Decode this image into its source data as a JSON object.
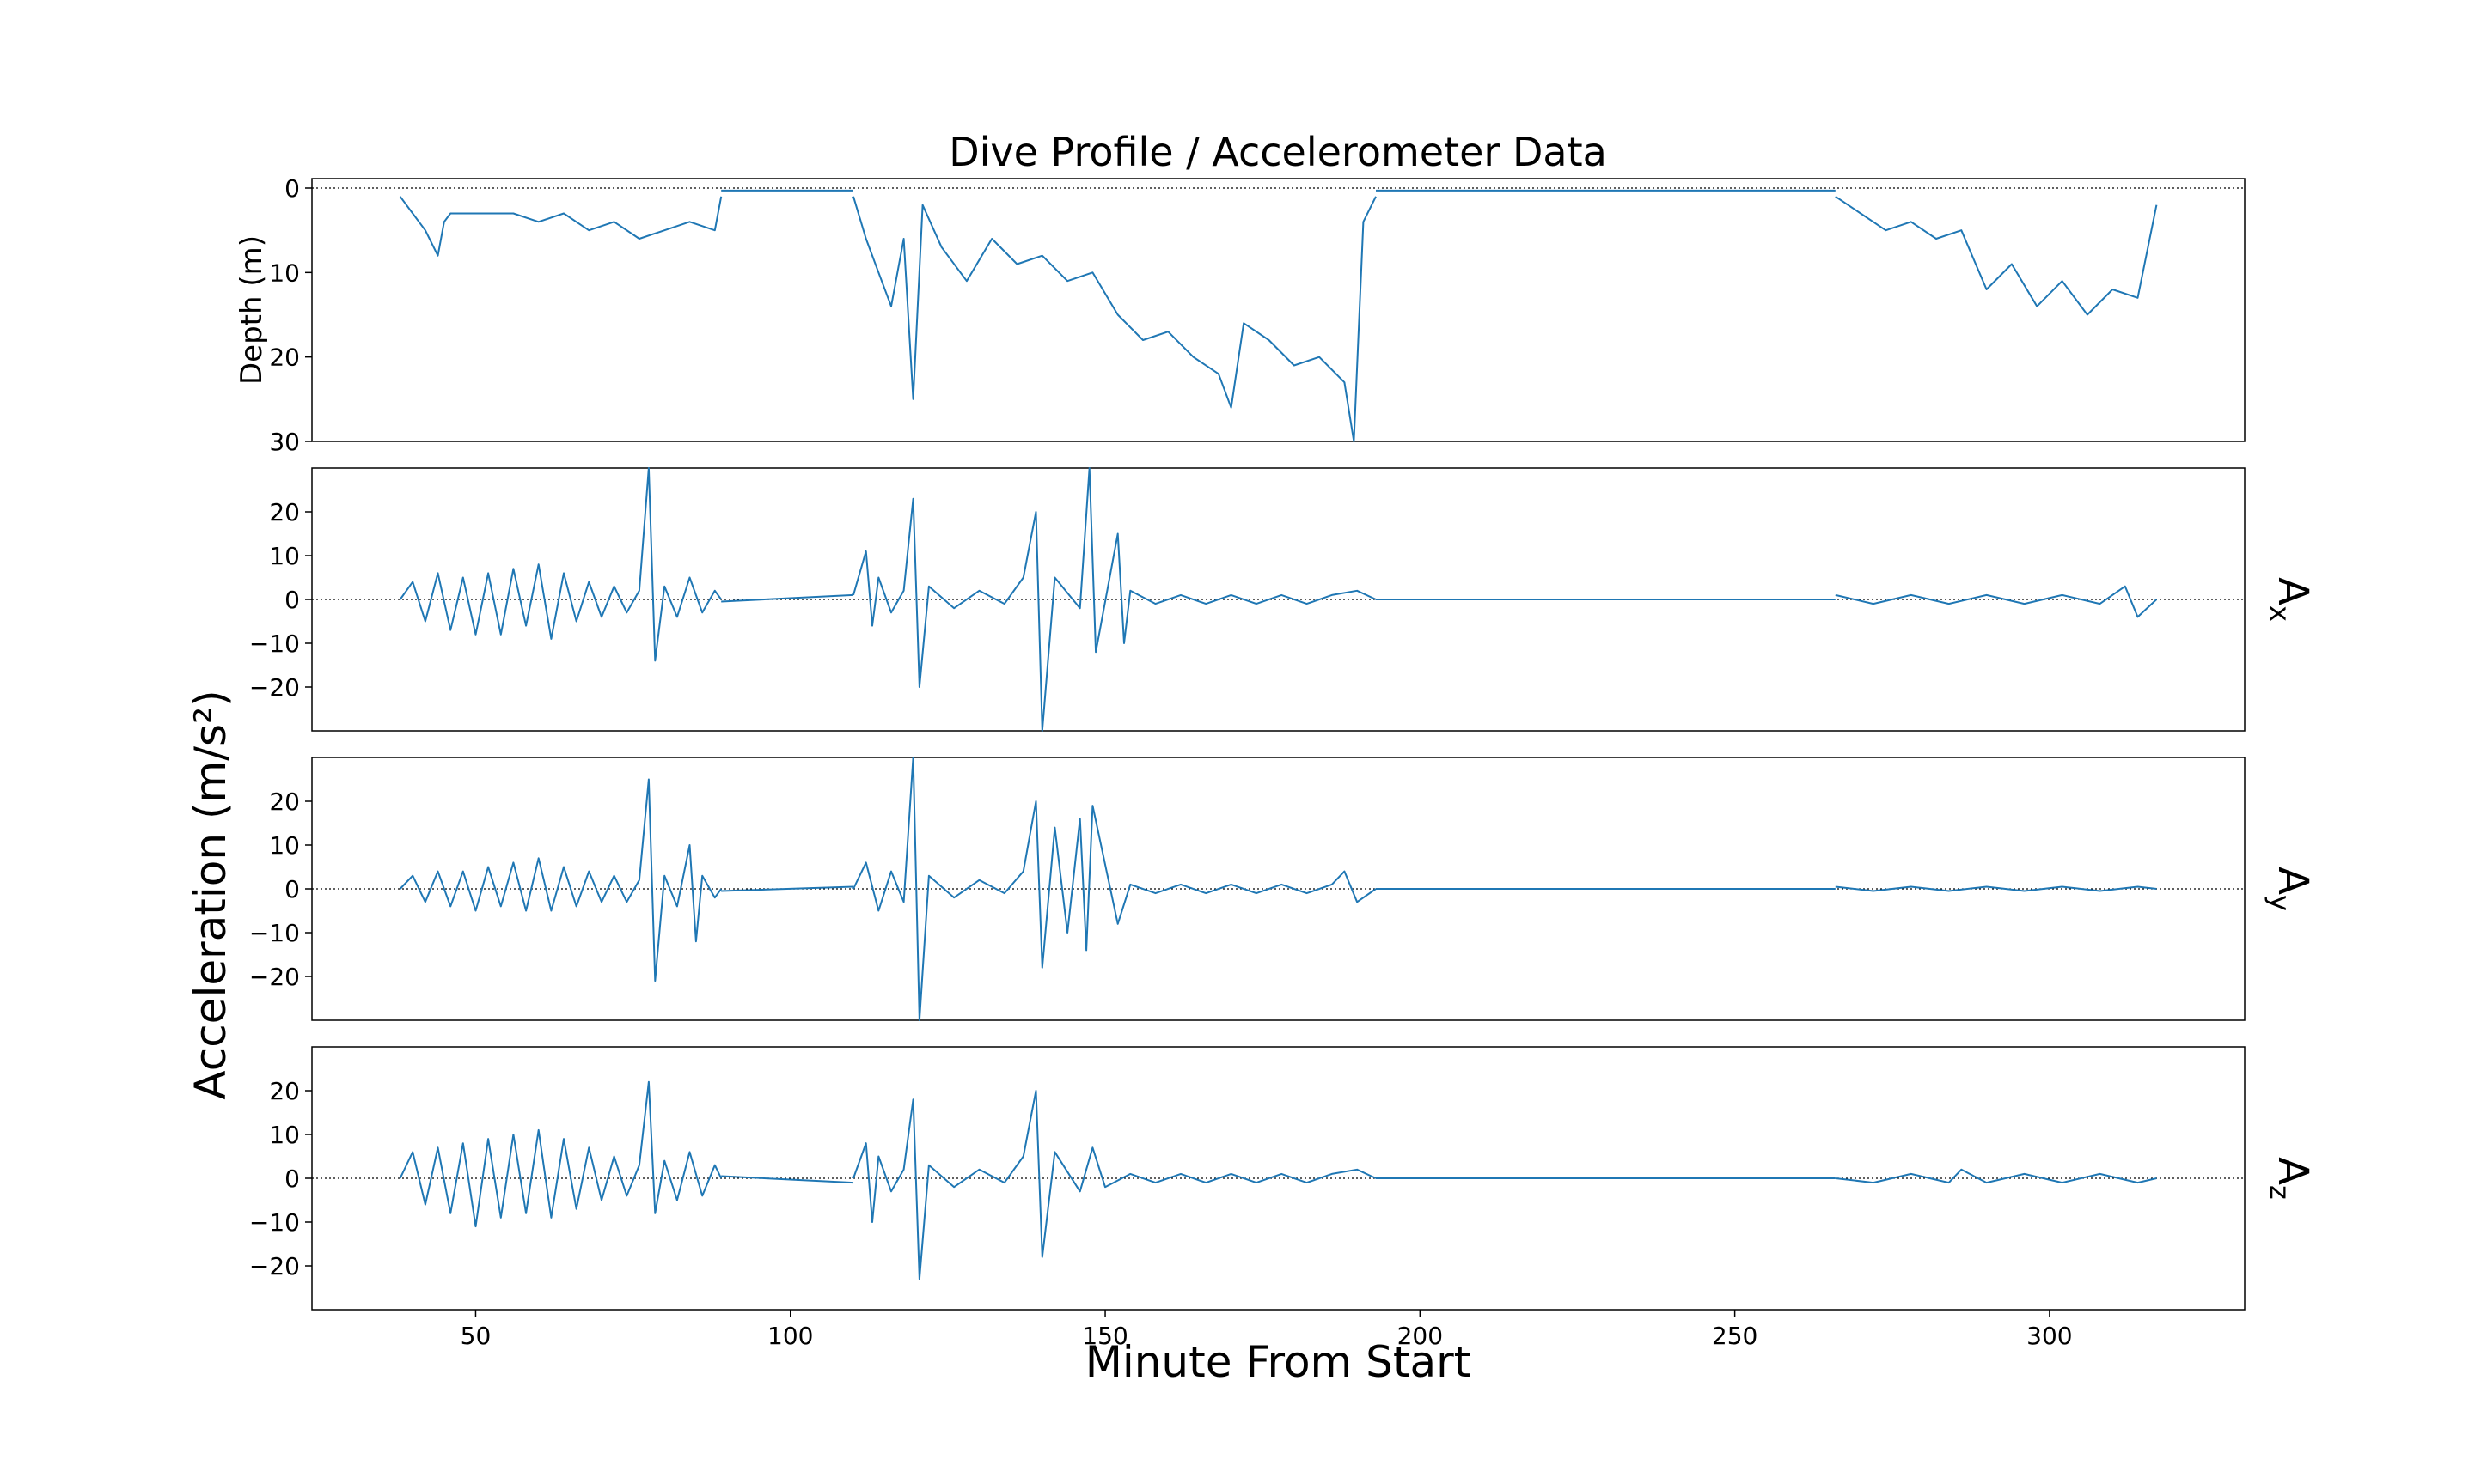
{
  "chart_data": {
    "type": "line",
    "title": "Dive Profile / Accelerometer Data",
    "xlabel": "Minute From Start",
    "xlim": [
      24,
      331
    ],
    "xticks": [
      50,
      100,
      150,
      200,
      250,
      300
    ],
    "ylabel_shared": "Acceleration (m/s²)",
    "line_color": "#1f77b4",
    "zero_line": "dotted",
    "panels": [
      {
        "name": "depth",
        "ylabel": "Depth (m)",
        "ylim": [
          0,
          30
        ],
        "inverted": true,
        "yticks": [
          0,
          10,
          20,
          30
        ],
        "segments": [
          {
            "x": [
              38,
              40,
              42,
              44,
              45,
              46,
              48,
              52,
              56,
              60,
              64,
              68,
              72,
              76,
              80,
              84,
              88,
              89
            ],
            "y": [
              1,
              3,
              5,
              8,
              4,
              3,
              3,
              3,
              3,
              4,
              3,
              5,
              4,
              6,
              5,
              4,
              5,
              1
            ]
          },
          {
            "x": [
              89,
              110
            ],
            "y": [
              0.3,
              0.3
            ]
          },
          {
            "x": [
              110,
              112,
              114,
              116,
              118,
              119.5,
              121,
              124,
              128,
              132,
              136,
              140,
              144,
              148,
              152,
              156,
              160,
              164,
              168,
              170,
              172,
              176,
              180,
              184,
              188,
              189.5,
              191,
              193
            ],
            "y": [
              1,
              6,
              10,
              14,
              6,
              25,
              2,
              7,
              11,
              6,
              9,
              8,
              11,
              10,
              15,
              18,
              17,
              20,
              22,
              26,
              16,
              18,
              21,
              20,
              23,
              30,
              4,
              1
            ]
          },
          {
            "x": [
              193,
              266
            ],
            "y": [
              0.3,
              0.3
            ]
          },
          {
            "x": [
              266,
              270,
              274,
              278,
              282,
              286,
              290,
              294,
              298,
              302,
              306,
              310,
              314,
              317
            ],
            "y": [
              1,
              3,
              5,
              4,
              6,
              5,
              12,
              9,
              14,
              11,
              15,
              12,
              13,
              2
            ]
          }
        ]
      },
      {
        "name": "ax",
        "label": "Ax",
        "ylim": [
          -30,
          30
        ],
        "yticks": [
          -20,
          -10,
          0,
          10,
          20
        ],
        "segments": [
          {
            "x": [
              38,
              40,
              42,
              44,
              46,
              48,
              50,
              52,
              54,
              56,
              58,
              60,
              62,
              64,
              66,
              68,
              70,
              72,
              74,
              76,
              77.5,
              78.5,
              80,
              82,
              84,
              86,
              88,
              89
            ],
            "y": [
              0,
              4,
              -5,
              6,
              -7,
              5,
              -8,
              6,
              -8,
              7,
              -6,
              8,
              -9,
              6,
              -5,
              4,
              -4,
              3,
              -3,
              2,
              30,
              -14,
              3,
              -4,
              5,
              -3,
              2,
              0
            ]
          },
          {
            "x": [
              89,
              110
            ],
            "y": [
              -0.5,
              1
            ]
          },
          {
            "x": [
              110,
              112,
              113,
              114,
              116,
              118,
              119.5,
              120.5,
              122,
              126,
              130,
              134,
              137,
              139,
              140,
              142,
              146,
              147.5,
              148.5,
              152,
              153,
              154,
              158,
              162,
              166,
              170,
              174,
              178,
              182,
              186,
              190,
              193
            ],
            "y": [
              1,
              11,
              -6,
              5,
              -3,
              2,
              23,
              -20,
              3,
              -2,
              2,
              -1,
              5,
              20,
              -30,
              5,
              -2,
              30,
              -12,
              15,
              -10,
              2,
              -1,
              1,
              -1,
              1,
              -1,
              1,
              -1,
              1,
              2,
              0
            ]
          },
          {
            "x": [
              193,
              266
            ],
            "y": [
              0,
              0
            ]
          },
          {
            "x": [
              266,
              272,
              278,
              284,
              290,
              296,
              302,
              308,
              312,
              314,
              317
            ],
            "y": [
              1,
              -1,
              1,
              -1,
              1,
              -1,
              1,
              -1,
              3,
              -4,
              0
            ]
          }
        ]
      },
      {
        "name": "ay",
        "label": "Ay",
        "ylim": [
          -30,
          30
        ],
        "yticks": [
          -20,
          -10,
          0,
          10,
          20
        ],
        "segments": [
          {
            "x": [
              38,
              40,
              42,
              44,
              46,
              48,
              50,
              52,
              54,
              56,
              58,
              60,
              62,
              64,
              66,
              68,
              70,
              72,
              74,
              76,
              77.5,
              78.5,
              80,
              82,
              84,
              85,
              86,
              88,
              89
            ],
            "y": [
              0,
              3,
              -3,
              4,
              -4,
              4,
              -5,
              5,
              -4,
              6,
              -5,
              7,
              -5,
              5,
              -4,
              4,
              -3,
              3,
              -3,
              2,
              25,
              -21,
              3,
              -4,
              10,
              -12,
              3,
              -2,
              0
            ]
          },
          {
            "x": [
              89,
              110
            ],
            "y": [
              -0.5,
              0.5
            ]
          },
          {
            "x": [
              110,
              112,
              114,
              116,
              118,
              119.5,
              120.5,
              122,
              126,
              130,
              134,
              137,
              139,
              140,
              142,
              144,
              146,
              147,
              148,
              152,
              154,
              158,
              162,
              166,
              170,
              174,
              178,
              182,
              186,
              188,
              190,
              193
            ],
            "y": [
              0,
              6,
              -5,
              4,
              -3,
              30,
              -30,
              3,
              -2,
              2,
              -1,
              4,
              20,
              -18,
              14,
              -10,
              16,
              -14,
              19,
              -8,
              1,
              -1,
              1,
              -1,
              1,
              -1,
              1,
              -1,
              1,
              4,
              -3,
              0
            ]
          },
          {
            "x": [
              193,
              266
            ],
            "y": [
              0,
              0
            ]
          },
          {
            "x": [
              266,
              272,
              278,
              284,
              290,
              296,
              302,
              308,
              314,
              317
            ],
            "y": [
              0.5,
              -0.5,
              0.5,
              -0.5,
              0.5,
              -0.5,
              0.5,
              -0.5,
              0.5,
              0
            ]
          }
        ]
      },
      {
        "name": "az",
        "label": "Az",
        "ylim": [
          -30,
          30
        ],
        "yticks": [
          -20,
          -10,
          0,
          10,
          20
        ],
        "segments": [
          {
            "x": [
              38,
              40,
              42,
              44,
              46,
              48,
              50,
              52,
              54,
              56,
              58,
              60,
              62,
              64,
              66,
              68,
              70,
              72,
              74,
              76,
              77.5,
              78.5,
              80,
              82,
              84,
              86,
              88,
              89
            ],
            "y": [
              0,
              6,
              -6,
              7,
              -8,
              8,
              -11,
              9,
              -9,
              10,
              -8,
              11,
              -9,
              9,
              -7,
              7,
              -5,
              5,
              -4,
              3,
              22,
              -8,
              4,
              -5,
              6,
              -4,
              3,
              0
            ]
          },
          {
            "x": [
              89,
              110
            ],
            "y": [
              0.5,
              -1
            ]
          },
          {
            "x": [
              110,
              112,
              113,
              114,
              116,
              118,
              119.5,
              120.5,
              122,
              126,
              130,
              134,
              137,
              139,
              140,
              142,
              146,
              148,
              150,
              154,
              158,
              162,
              166,
              170,
              174,
              178,
              182,
              186,
              190,
              193
            ],
            "y": [
              0,
              8,
              -10,
              5,
              -3,
              2,
              18,
              -23,
              3,
              -2,
              2,
              -1,
              5,
              20,
              -18,
              6,
              -3,
              7,
              -2,
              1,
              -1,
              1,
              -1,
              1,
              -1,
              1,
              -1,
              1,
              2,
              0
            ]
          },
          {
            "x": [
              193,
              266
            ],
            "y": [
              0,
              0
            ]
          },
          {
            "x": [
              266,
              272,
              278,
              284,
              286,
              290,
              296,
              302,
              308,
              314,
              317
            ],
            "y": [
              0,
              -1,
              1,
              -1,
              2,
              -1,
              1,
              -1,
              1,
              -1,
              0
            ]
          }
        ]
      }
    ]
  }
}
